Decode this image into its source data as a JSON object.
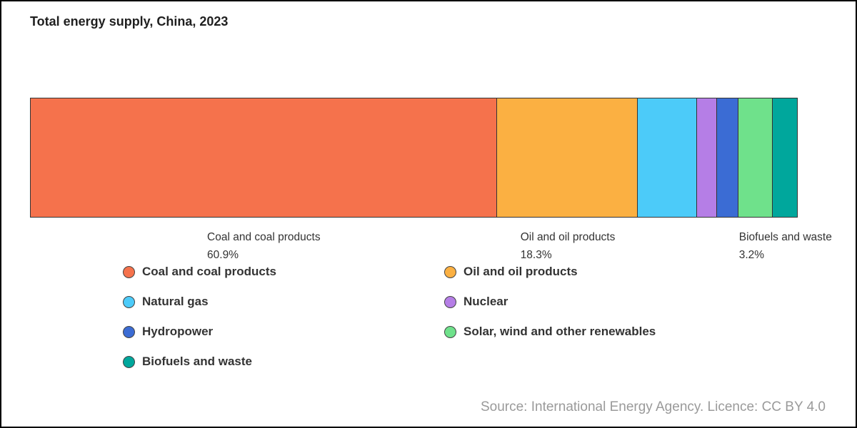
{
  "title": "Total energy supply, China, 2023",
  "source": "Source: International Energy Agency. Licence: CC BY 4.0",
  "chart_data": {
    "type": "bar",
    "variant": "stacked-horizontal",
    "title": "Total energy supply, China, 2023",
    "unit": "%",
    "xlim": [
      0,
      100
    ],
    "grid": false,
    "legend_position": "bottom-two-columns",
    "series": [
      {
        "name": "Coal and coal products",
        "value": 60.9,
        "color": "#F5724C"
      },
      {
        "name": "Oil and oil products",
        "value": 18.3,
        "color": "#FBB042"
      },
      {
        "name": "Natural gas",
        "value": 7.8,
        "color": "#4CCBF9"
      },
      {
        "name": "Nuclear",
        "value": 2.6,
        "color": "#B57EE6"
      },
      {
        "name": "Hydropower",
        "value": 2.8,
        "color": "#3B6CD4"
      },
      {
        "name": "Solar, wind and other renewables",
        "value": 4.4,
        "color": "#6FE18B"
      },
      {
        "name": "Biofuels and waste",
        "value": 3.2,
        "color": "#00A79C"
      }
    ],
    "annotations": [
      {
        "name": "Coal and coal products",
        "percent_label": "60.9%"
      },
      {
        "name": "Oil and oil products",
        "percent_label": "18.3%"
      },
      {
        "name": "Biofuels and waste",
        "percent_label": "3.2%"
      }
    ]
  },
  "legend": {
    "columns": [
      [
        {
          "label": "Coal and coal products",
          "color": "#F5724C"
        },
        {
          "label": "Natural gas",
          "color": "#4CCBF9"
        },
        {
          "label": "Hydropower",
          "color": "#3B6CD4"
        },
        {
          "label": "Biofuels and waste",
          "color": "#00A79C"
        }
      ],
      [
        {
          "label": "Oil and oil products",
          "color": "#FBB042"
        },
        {
          "label": "Nuclear",
          "color": "#B57EE6"
        },
        {
          "label": "Solar, wind and other renewables",
          "color": "#6FE18B"
        }
      ]
    ]
  }
}
